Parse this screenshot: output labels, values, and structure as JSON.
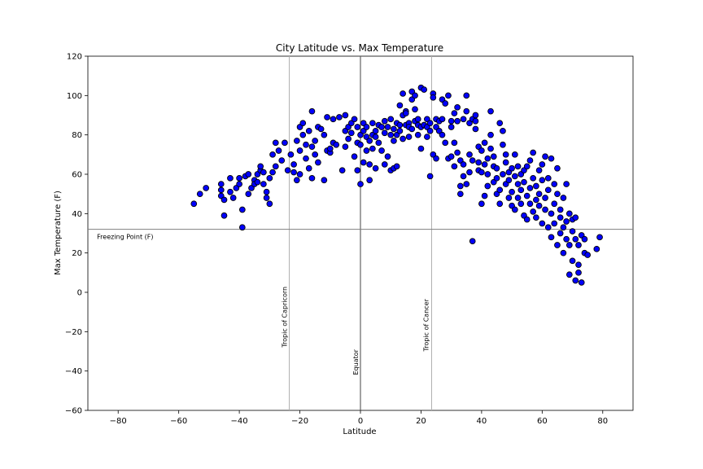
{
  "colors": {
    "point_fill": "#0000ff",
    "point_edge": "#000000",
    "ref_line": "#808080",
    "freeze_line": "#808080"
  },
  "chart_data": {
    "type": "scatter",
    "title": "City Latitude vs. Max Temperature",
    "xlabel": "Latitude",
    "ylabel": "Max Temperature (F)",
    "xlim": [
      -90,
      90
    ],
    "ylim": [
      -60,
      120
    ],
    "xticks": [
      -80,
      -60,
      -40,
      -20,
      0,
      20,
      40,
      60,
      80
    ],
    "yticks": [
      -60,
      -40,
      -20,
      0,
      20,
      40,
      60,
      80,
      100,
      120
    ],
    "xtick_labels": [
      "−80",
      "−60",
      "−40",
      "−20",
      "0",
      "20",
      "40",
      "60",
      "80"
    ],
    "ytick_labels": [
      "−60",
      "−40",
      "−20",
      "0",
      "20",
      "40",
      "60",
      "80",
      "100",
      "120"
    ],
    "grid": false,
    "reference_lines": [
      {
        "name": "Tropic of Capricorn",
        "orientation": "vertical",
        "value": -23.5
      },
      {
        "name": "Equator",
        "orientation": "vertical",
        "value": 0
      },
      {
        "name": "Tropic of Cancer",
        "orientation": "vertical",
        "value": 23.5
      },
      {
        "name": "Freezing Point (F)",
        "orientation": "horizontal",
        "value": 32
      }
    ],
    "points": [
      [
        -55,
        45
      ],
      [
        -53,
        50
      ],
      [
        -51,
        53
      ],
      [
        -46,
        55
      ],
      [
        -46,
        52
      ],
      [
        -46,
        49
      ],
      [
        -45,
        47
      ],
      [
        -45,
        39
      ],
      [
        -43,
        51
      ],
      [
        -43,
        58
      ],
      [
        -42,
        48
      ],
      [
        -41,
        53
      ],
      [
        -40,
        58
      ],
      [
        -40,
        55
      ],
      [
        -39,
        42
      ],
      [
        -39,
        33
      ],
      [
        -38,
        59
      ],
      [
        -37,
        60
      ],
      [
        -37,
        50
      ],
      [
        -36,
        53
      ],
      [
        -35,
        57
      ],
      [
        -35,
        55
      ],
      [
        -34,
        60
      ],
      [
        -34,
        56
      ],
      [
        -33,
        62
      ],
      [
        -33,
        64
      ],
      [
        -32,
        61
      ],
      [
        -32,
        55
      ],
      [
        -31,
        51
      ],
      [
        -31,
        48
      ],
      [
        -30,
        58
      ],
      [
        -30,
        45
      ],
      [
        -29,
        70
      ],
      [
        -29,
        61
      ],
      [
        -28,
        64
      ],
      [
        -28,
        76
      ],
      [
        -27,
        72
      ],
      [
        -26,
        67
      ],
      [
        -25,
        76
      ],
      [
        -24,
        62
      ],
      [
        -23,
        70
      ],
      [
        -22,
        61
      ],
      [
        -22,
        65
      ],
      [
        -21,
        57
      ],
      [
        -21,
        77
      ],
      [
        -20,
        84
      ],
      [
        -20,
        72
      ],
      [
        -20,
        60
      ],
      [
        -19,
        86
      ],
      [
        -19,
        80
      ],
      [
        -18,
        75
      ],
      [
        -18,
        68
      ],
      [
        -17,
        82
      ],
      [
        -17,
        63
      ],
      [
        -16,
        74
      ],
      [
        -16,
        58
      ],
      [
        -16,
        92
      ],
      [
        -15,
        77
      ],
      [
        -15,
        70
      ],
      [
        -14,
        84
      ],
      [
        -14,
        66
      ],
      [
        -13,
        83
      ],
      [
        -12,
        57
      ],
      [
        -12,
        80
      ],
      [
        -11,
        72
      ],
      [
        -11,
        89
      ],
      [
        -10,
        71
      ],
      [
        -10,
        73
      ],
      [
        -9,
        88
      ],
      [
        -9,
        76
      ],
      [
        -8,
        75
      ],
      [
        -7,
        89
      ],
      [
        -6,
        62
      ],
      [
        -5,
        82
      ],
      [
        -5,
        90
      ],
      [
        -5,
        74
      ],
      [
        -4,
        84
      ],
      [
        -4,
        78
      ],
      [
        -3,
        81
      ],
      [
        -3,
        86
      ],
      [
        -2,
        69
      ],
      [
        -2,
        88
      ],
      [
        -1,
        84
      ],
      [
        -1,
        62
      ],
      [
        -1,
        76
      ],
      [
        0,
        55
      ],
      [
        0,
        80
      ],
      [
        0,
        75
      ],
      [
        1,
        82
      ],
      [
        1,
        86
      ],
      [
        1,
        66
      ],
      [
        2,
        79
      ],
      [
        2,
        72
      ],
      [
        2,
        84
      ],
      [
        3,
        65
      ],
      [
        3,
        57
      ],
      [
        3,
        77
      ],
      [
        4,
        73
      ],
      [
        4,
        86
      ],
      [
        4,
        80
      ],
      [
        5,
        82
      ],
      [
        5,
        63
      ],
      [
        5,
        79
      ],
      [
        6,
        85
      ],
      [
        6,
        76
      ],
      [
        7,
        72
      ],
      [
        7,
        84
      ],
      [
        8,
        87
      ],
      [
        8,
        65
      ],
      [
        8,
        81
      ],
      [
        9,
        84
      ],
      [
        9,
        69
      ],
      [
        10,
        80
      ],
      [
        10,
        62
      ],
      [
        10,
        88
      ],
      [
        11,
        83
      ],
      [
        11,
        63
      ],
      [
        11,
        77
      ],
      [
        12,
        86
      ],
      [
        12,
        80
      ],
      [
        12,
        64
      ],
      [
        13,
        85
      ],
      [
        13,
        95
      ],
      [
        13,
        82
      ],
      [
        14,
        90
      ],
      [
        14,
        78
      ],
      [
        14,
        101
      ],
      [
        15,
        92
      ],
      [
        15,
        85
      ],
      [
        15,
        91
      ],
      [
        16,
        86
      ],
      [
        16,
        79
      ],
      [
        16,
        84
      ],
      [
        17,
        98
      ],
      [
        17,
        102
      ],
      [
        17,
        83
      ],
      [
        18,
        87
      ],
      [
        18,
        100
      ],
      [
        18,
        93
      ],
      [
        19,
        88
      ],
      [
        19,
        80
      ],
      [
        19,
        85
      ],
      [
        20,
        104
      ],
      [
        20,
        73
      ],
      [
        20,
        84
      ],
      [
        21,
        85
      ],
      [
        21,
        103
      ],
      [
        21,
        85
      ],
      [
        22,
        79
      ],
      [
        22,
        88
      ],
      [
        22,
        84
      ],
      [
        23,
        82
      ],
      [
        23,
        59
      ],
      [
        23,
        86
      ],
      [
        24,
        101
      ],
      [
        24,
        70
      ],
      [
        24,
        99
      ],
      [
        25,
        88
      ],
      [
        25,
        84
      ],
      [
        25,
        68
      ],
      [
        26,
        82
      ],
      [
        26,
        87
      ],
      [
        27,
        98
      ],
      [
        27,
        88
      ],
      [
        27,
        80
      ],
      [
        28,
        96
      ],
      [
        28,
        76
      ],
      [
        29,
        68
      ],
      [
        29,
        100
      ],
      [
        30,
        84
      ],
      [
        30,
        87
      ],
      [
        30,
        69
      ],
      [
        31,
        91
      ],
      [
        31,
        64
      ],
      [
        31,
        76
      ],
      [
        32,
        94
      ],
      [
        32,
        71
      ],
      [
        32,
        87
      ],
      [
        33,
        54
      ],
      [
        33,
        50
      ],
      [
        33,
        67
      ],
      [
        34,
        88
      ],
      [
        34,
        59
      ],
      [
        34,
        65
      ],
      [
        35,
        100
      ],
      [
        35,
        92
      ],
      [
        35,
        55
      ],
      [
        36,
        86
      ],
      [
        36,
        61
      ],
      [
        36,
        70
      ],
      [
        37,
        88
      ],
      [
        37,
        67
      ],
      [
        37,
        26
      ],
      [
        38,
        90
      ],
      [
        38,
        87
      ],
      [
        38,
        83
      ],
      [
        39,
        74
      ],
      [
        39,
        62
      ],
      [
        39,
        66
      ],
      [
        40,
        72
      ],
      [
        40,
        61
      ],
      [
        40,
        45
      ],
      [
        41,
        76
      ],
      [
        41,
        65
      ],
      [
        41,
        49
      ],
      [
        42,
        68
      ],
      [
        42,
        60
      ],
      [
        42,
        54
      ],
      [
        43,
        80
      ],
      [
        43,
        92
      ],
      [
        43,
        73
      ],
      [
        44,
        64
      ],
      [
        44,
        56
      ],
      [
        44,
        69
      ],
      [
        45,
        58
      ],
      [
        45,
        50
      ],
      [
        45,
        63
      ],
      [
        46,
        86
      ],
      [
        46,
        52
      ],
      [
        46,
        45
      ],
      [
        47,
        75
      ],
      [
        47,
        60
      ],
      [
        47,
        82
      ],
      [
        48,
        66
      ],
      [
        48,
        55
      ],
      [
        48,
        70
      ],
      [
        49,
        57
      ],
      [
        49,
        48
      ],
      [
        49,
        61
      ],
      [
        50,
        63
      ],
      [
        50,
        51
      ],
      [
        50,
        44
      ],
      [
        51,
        59
      ],
      [
        51,
        70
      ],
      [
        51,
        42
      ],
      [
        52,
        64
      ],
      [
        52,
        48
      ],
      [
        52,
        55
      ],
      [
        53,
        60
      ],
      [
        53,
        45
      ],
      [
        53,
        52
      ],
      [
        54,
        56
      ],
      [
        54,
        39
      ],
      [
        54,
        62
      ],
      [
        55,
        49
      ],
      [
        55,
        64
      ],
      [
        55,
        37
      ],
      [
        56,
        53
      ],
      [
        56,
        45
      ],
      [
        56,
        67
      ],
      [
        57,
        58
      ],
      [
        57,
        41
      ],
      [
        57,
        71
      ],
      [
        58,
        47
      ],
      [
        58,
        54
      ],
      [
        58,
        38
      ],
      [
        59,
        62
      ],
      [
        59,
        44
      ],
      [
        59,
        50
      ],
      [
        60,
        57
      ],
      [
        60,
        35
      ],
      [
        60,
        65
      ],
      [
        61,
        48
      ],
      [
        61,
        42
      ],
      [
        61,
        69
      ],
      [
        62,
        52
      ],
      [
        62,
        33
      ],
      [
        62,
        58
      ],
      [
        63,
        40
      ],
      [
        63,
        68
      ],
      [
        63,
        28
      ],
      [
        64,
        45
      ],
      [
        64,
        55
      ],
      [
        64,
        35
      ],
      [
        65,
        50
      ],
      [
        65,
        24
      ],
      [
        65,
        63
      ],
      [
        66,
        30
      ],
      [
        66,
        42
      ],
      [
        66,
        38
      ],
      [
        67,
        48
      ],
      [
        67,
        20
      ],
      [
        67,
        33
      ],
      [
        68,
        36
      ],
      [
        68,
        27
      ],
      [
        68,
        55
      ],
      [
        69,
        24
      ],
      [
        69,
        9
      ],
      [
        69,
        40
      ],
      [
        70,
        31
      ],
      [
        70,
        16
      ],
      [
        70,
        37
      ],
      [
        71,
        27
      ],
      [
        71,
        6
      ],
      [
        71,
        38
      ],
      [
        72,
        14
      ],
      [
        72,
        24
      ],
      [
        72,
        10
      ],
      [
        73,
        5
      ],
      [
        73,
        29
      ],
      [
        74,
        20
      ],
      [
        74,
        27
      ],
      [
        75,
        19
      ],
      [
        78,
        22
      ],
      [
        79,
        28
      ]
    ]
  }
}
